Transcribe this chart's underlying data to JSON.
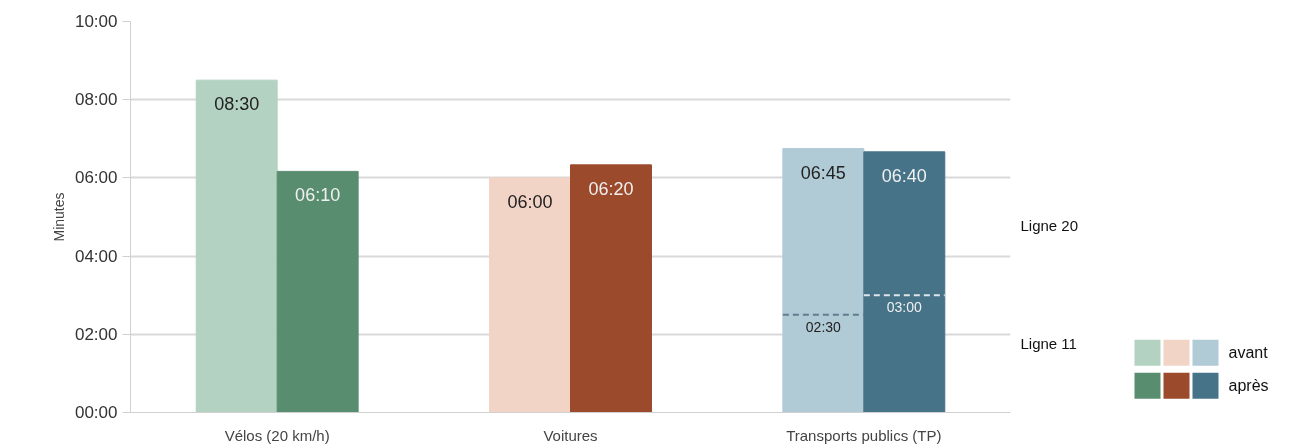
{
  "chart_data": {
    "type": "bar",
    "ylabel": "Minutes",
    "categories": [
      "Vélos (20 km/h)",
      "Voitures",
      "Transports publics (TP)"
    ],
    "series": [
      {
        "name": "avant",
        "colors": [
          "#b3d2c2",
          "#f2d4c6",
          "#b0cad6"
        ],
        "values": [
          8.5,
          6.0,
          6.75
        ],
        "value_labels": [
          "08:30",
          "06:00",
          "06:45"
        ]
      },
      {
        "name": "après",
        "colors": [
          "#598d70",
          "#9b4a2b",
          "#467387"
        ],
        "values": [
          6.1667,
          6.3333,
          6.6667
        ],
        "value_labels": [
          "06:10",
          "06:20",
          "06:40"
        ]
      }
    ],
    "ylim": [
      0,
      10
    ],
    "yticks": [
      {
        "value": 0,
        "label": "00:00"
      },
      {
        "value": 2,
        "label": "02:00"
      },
      {
        "value": 4,
        "label": "04:00"
      },
      {
        "value": 6,
        "label": "06:00"
      },
      {
        "value": 8,
        "label": "08:00"
      },
      {
        "value": 10,
        "label": "10:00"
      }
    ],
    "grid": "y",
    "legend": "bottom right",
    "ref_lines": [
      {
        "axis": "y",
        "value": 2.5,
        "label": "02:30",
        "line_style": "dashed"
      },
      {
        "axis": "y",
        "value": 3.0,
        "label": "03:00",
        "line_style": "dashed"
      }
    ],
    "annotations": [
      "Ligne 20",
      "Ligne 11"
    ]
  }
}
